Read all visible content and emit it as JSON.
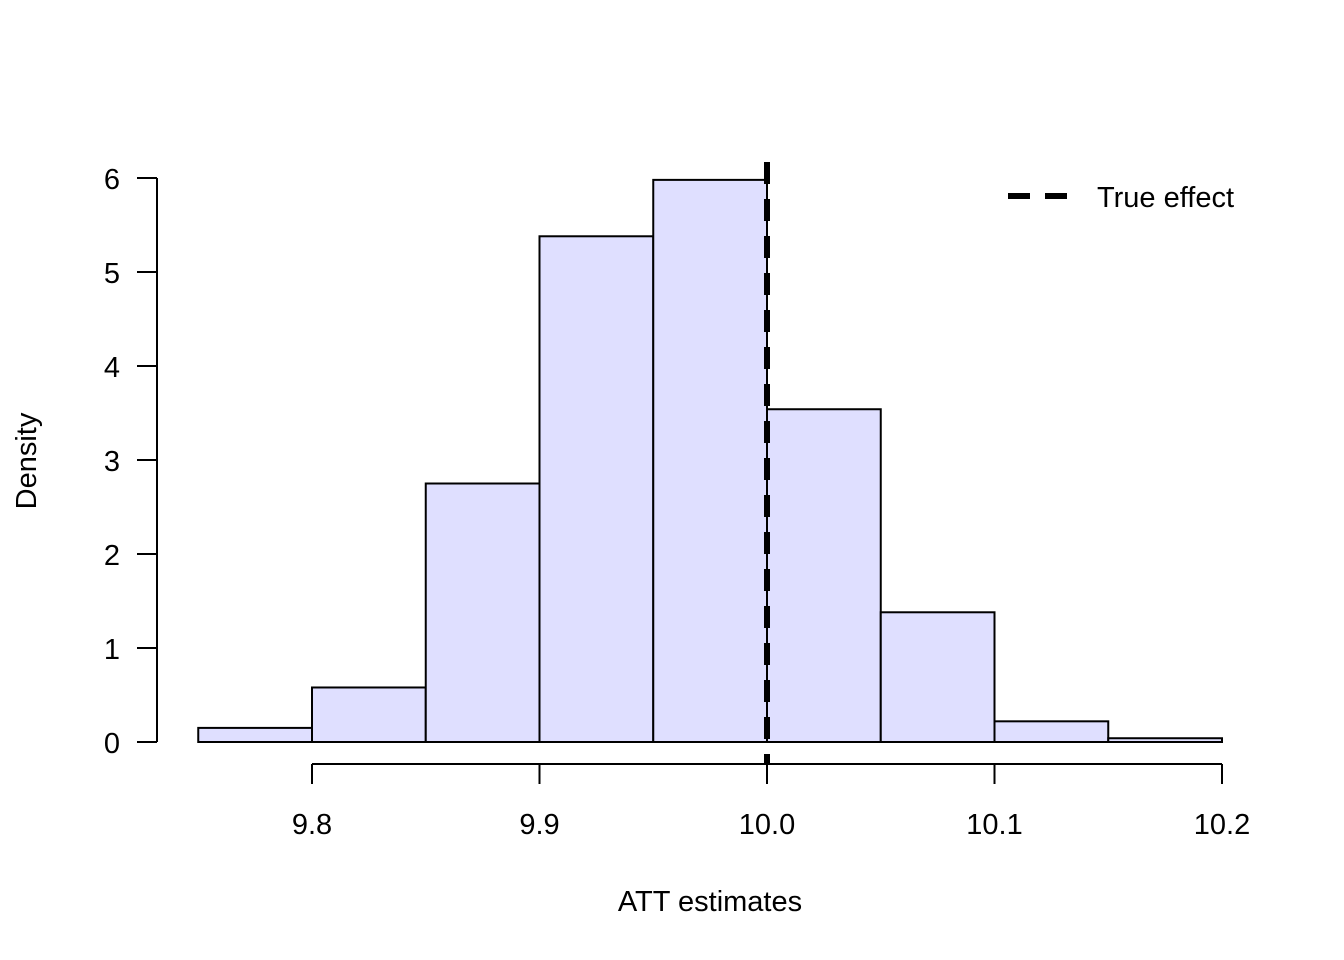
{
  "chart_data": {
    "type": "bar",
    "histogram": true,
    "title": "",
    "xlabel": "ATT estimates",
    "ylabel": "Density",
    "bin_edges": [
      9.75,
      9.8,
      9.85,
      9.9,
      9.95,
      10.0,
      10.05,
      10.1,
      10.15,
      10.2
    ],
    "values": [
      0.15,
      0.58,
      2.75,
      5.38,
      5.98,
      3.54,
      1.38,
      0.22,
      0.04
    ],
    "xlim": [
      9.75,
      10.2
    ],
    "ylim": [
      0,
      6
    ],
    "x_ticks": [
      9.8,
      9.9,
      10.0,
      10.1,
      10.2
    ],
    "x_tick_labels": [
      "9.8",
      "9.9",
      "10.0",
      "10.1",
      "10.2"
    ],
    "y_ticks": [
      0,
      1,
      2,
      3,
      4,
      5,
      6
    ],
    "y_tick_labels": [
      "0",
      "1",
      "2",
      "3",
      "4",
      "5",
      "6"
    ],
    "vline": {
      "x": 10.0,
      "style": "dashed",
      "color": "#000000",
      "label": "True effect"
    },
    "legend": {
      "position": "top-right",
      "entries": [
        "True effect"
      ]
    },
    "bar_fill": "#dfdfff",
    "bar_stroke": "#000000",
    "grid": false
  }
}
